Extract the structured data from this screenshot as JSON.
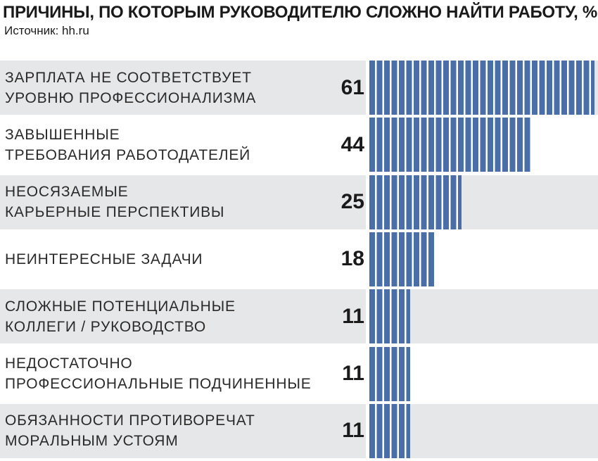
{
  "header": {
    "title": "ПРИЧИНЫ, ПО КОТОРЫМ РУКОВОДИТЕЛЮ СЛОЖНО НАЙТИ РАБОТУ, %",
    "source": "Источник: hh.ru"
  },
  "colors": {
    "bar": "#4a6fa8",
    "row_shade": "#e6e7e9"
  },
  "chart_data": {
    "type": "bar",
    "orientation": "horizontal",
    "categories": [
      "ЗАРПЛАТА НЕ СООТВЕТСТВУЕТ\nУРОВНЮ ПРОФЕССИОНАЛИЗМА",
      "ЗАВЫШЕННЫЕ\nТРЕБОВАНИЯ РАБОТОДАТЕЛЕЙ",
      "НЕОСЯЗАЕМЫЕ\nКАРЬЕРНЫЕ ПЕРСПЕКТИВЫ",
      "НЕИНТЕРЕСНЫЕ ЗАДАЧИ",
      "СЛОЖНЫЕ ПОТЕНЦИАЛЬНЫЕ\nКОЛЛЕГИ / РУКОВОДСТВО",
      "НЕДОСТАТОЧНО\nПРОФЕССИОНАЛЬНЫЕ ПОДЧИНЕННЫЕ",
      "ОБЯЗАННОСТИ ПРОТИВОРЕЧАТ\nМОРАЛЬНЫМ УСТОЯМ"
    ],
    "values": [
      61,
      44,
      25,
      18,
      11,
      11,
      11
    ],
    "xlim": [
      0,
      61
    ],
    "grid": false,
    "legend": "none"
  }
}
